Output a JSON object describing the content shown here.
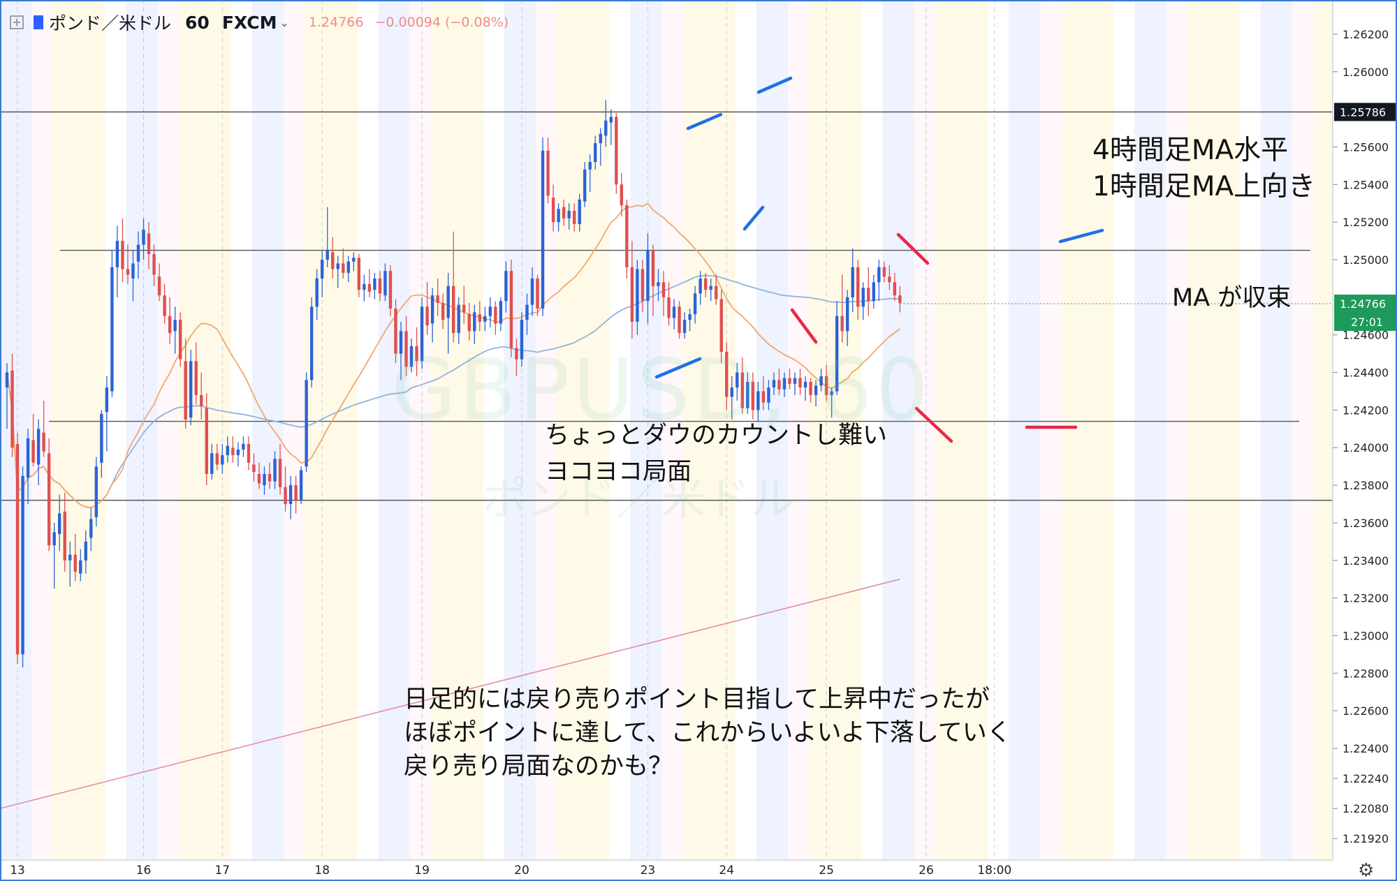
{
  "header": {
    "symbol": "ポンド／米ドル",
    "interval": "60",
    "source": "FXCM",
    "last_price": "1.24766",
    "change": "−0.00094 (−0.08%)"
  },
  "watermark": {
    "ticker": "GBPUSD, 60",
    "name": "ポンド／米ドル"
  },
  "chart_data": {
    "type": "candlestick",
    "ylim": [
      1.2188,
      1.263
    ],
    "price_ticks": [
      "1.26200",
      "1.26000",
      "1.25600",
      "1.25400",
      "1.25200",
      "1.25000",
      "1.24600",
      "1.24400",
      "1.24200",
      "1.24000",
      "1.23800",
      "1.23600",
      "1.23400",
      "1.23200",
      "1.23000",
      "1.22800",
      "1.22600",
      "1.22400",
      "1.22240",
      "1.22080",
      "1.21920"
    ],
    "date_ticks": [
      {
        "label": "13",
        "bar": 2
      },
      {
        "label": "16",
        "bar": 26
      },
      {
        "label": "17",
        "bar": 41
      },
      {
        "label": "18",
        "bar": 60
      },
      {
        "label": "19",
        "bar": 79
      },
      {
        "label": "20",
        "bar": 98
      },
      {
        "label": "23",
        "bar": 122
      },
      {
        "label": "24",
        "bar": 137
      },
      {
        "label": "25",
        "bar": 156
      },
      {
        "label": "26",
        "bar": 175
      },
      {
        "label": "18:00",
        "bar": 188
      }
    ],
    "horizontal_lines": [
      {
        "price": 1.25786,
        "badge": "1.25786"
      },
      {
        "price": 1.2505
      },
      {
        "price": 1.2414
      },
      {
        "price": 1.2372
      }
    ],
    "last_badge": {
      "price": 1.24766,
      "value": "1.24766",
      "countdown": "27:01"
    },
    "candles": [
      [
        1.2432,
        1.2445,
        1.241,
        1.244
      ],
      [
        1.2441,
        1.245,
        1.2395,
        1.24
      ],
      [
        1.2402,
        1.2408,
        1.2285,
        1.229
      ],
      [
        1.229,
        1.239,
        1.2283,
        1.2385
      ],
      [
        1.2384,
        1.241,
        1.237,
        1.2405
      ],
      [
        1.2404,
        1.2418,
        1.239,
        1.2392
      ],
      [
        1.2391,
        1.2415,
        1.238,
        1.241
      ],
      [
        1.2408,
        1.2425,
        1.2395,
        1.2398
      ],
      [
        1.2397,
        1.2405,
        1.2345,
        1.2348
      ],
      [
        1.2348,
        1.236,
        1.2325,
        1.2355
      ],
      [
        1.2354,
        1.2375,
        1.2345,
        1.2365
      ],
      [
        1.2366,
        1.2376,
        1.2334,
        1.234
      ],
      [
        1.234,
        1.235,
        1.2326,
        1.2343
      ],
      [
        1.2343,
        1.2354,
        1.2329,
        1.2334
      ],
      [
        1.2333,
        1.2346,
        1.2329,
        1.234
      ],
      [
        1.234,
        1.2356,
        1.2333,
        1.235
      ],
      [
        1.2352,
        1.2368,
        1.2345,
        1.2362
      ],
      [
        1.2363,
        1.2395,
        1.2358,
        1.239
      ],
      [
        1.2392,
        1.242,
        1.2384,
        1.2418
      ],
      [
        1.2419,
        1.2438,
        1.2398,
        1.2432
      ],
      [
        1.243,
        1.2505,
        1.2427,
        1.2496
      ],
      [
        1.2496,
        1.2518,
        1.248,
        1.251
      ],
      [
        1.251,
        1.2522,
        1.2488,
        1.2495
      ],
      [
        1.2495,
        1.2508,
        1.2487,
        1.2492
      ],
      [
        1.249,
        1.2505,
        1.2478,
        1.2498
      ],
      [
        1.2499,
        1.2515,
        1.249,
        1.2508
      ],
      [
        1.2508,
        1.2522,
        1.25,
        1.2516
      ],
      [
        1.2514,
        1.252,
        1.2495,
        1.2503
      ],
      [
        1.2503,
        1.2508,
        1.2486,
        1.2492
      ],
      [
        1.2491,
        1.2498,
        1.2478,
        1.2481
      ],
      [
        1.2481,
        1.2487,
        1.2466,
        1.247
      ],
      [
        1.247,
        1.248,
        1.2455,
        1.2461
      ],
      [
        1.2462,
        1.2475,
        1.245,
        1.2468
      ],
      [
        1.2468,
        1.2472,
        1.2443,
        1.2447
      ],
      [
        1.2446,
        1.2458,
        1.241,
        1.2415
      ],
      [
        1.2416,
        1.2452,
        1.2412,
        1.2446
      ],
      [
        1.2446,
        1.2456,
        1.2423,
        1.2428
      ],
      [
        1.2428,
        1.244,
        1.2415,
        1.2422
      ],
      [
        1.2421,
        1.2429,
        1.238,
        1.2386
      ],
      [
        1.2386,
        1.2402,
        1.2383,
        1.2397
      ],
      [
        1.2397,
        1.2402,
        1.2388,
        1.2391
      ],
      [
        1.2391,
        1.2402,
        1.2386,
        1.2396
      ],
      [
        1.2396,
        1.2406,
        1.2392,
        1.2401
      ],
      [
        1.24,
        1.2406,
        1.2392,
        1.2396
      ],
      [
        1.2396,
        1.2403,
        1.239,
        1.2399
      ],
      [
        1.2399,
        1.2406,
        1.2395,
        1.2402
      ],
      [
        1.2402,
        1.2406,
        1.2388,
        1.2392
      ],
      [
        1.2391,
        1.2397,
        1.2382,
        1.2387
      ],
      [
        1.2386,
        1.2392,
        1.2378,
        1.2381
      ],
      [
        1.238,
        1.239,
        1.2375,
        1.2386
      ],
      [
        1.2386,
        1.2392,
        1.2378,
        1.2382
      ],
      [
        1.2382,
        1.2398,
        1.2378,
        1.2394
      ],
      [
        1.2394,
        1.2402,
        1.2375,
        1.2379
      ],
      [
        1.2379,
        1.239,
        1.2366,
        1.237
      ],
      [
        1.237,
        1.2385,
        1.2362,
        1.238
      ],
      [
        1.238,
        1.2385,
        1.2365,
        1.2372
      ],
      [
        1.2372,
        1.239,
        1.237,
        1.2388
      ],
      [
        1.239,
        1.244,
        1.2387,
        1.2436
      ],
      [
        1.2436,
        1.248,
        1.2432,
        1.2475
      ],
      [
        1.2475,
        1.2495,
        1.2468,
        1.249
      ],
      [
        1.249,
        1.2505,
        1.248,
        1.25
      ],
      [
        1.25,
        1.2528,
        1.2496,
        1.2505
      ],
      [
        1.2504,
        1.2512,
        1.249,
        1.2495
      ],
      [
        1.2495,
        1.2502,
        1.2485,
        1.2498
      ],
      [
        1.2498,
        1.2506,
        1.249,
        1.2493
      ],
      [
        1.2493,
        1.2502,
        1.2488,
        1.2499
      ],
      [
        1.2499,
        1.2504,
        1.2494,
        1.2501
      ],
      [
        1.2501,
        1.2503,
        1.248,
        1.2484
      ],
      [
        1.2484,
        1.2492,
        1.2478,
        1.2487
      ],
      [
        1.2487,
        1.2495,
        1.248,
        1.2483
      ],
      [
        1.2484,
        1.2493,
        1.2479,
        1.249
      ],
      [
        1.249,
        1.2494,
        1.2478,
        1.2482
      ],
      [
        1.2481,
        1.2498,
        1.2478,
        1.2494
      ],
      [
        1.2494,
        1.2497,
        1.247,
        1.2474
      ],
      [
        1.2474,
        1.2479,
        1.2445,
        1.245
      ],
      [
        1.245,
        1.2467,
        1.2436,
        1.2462
      ],
      [
        1.2462,
        1.247,
        1.2438,
        1.2443
      ],
      [
        1.2443,
        1.2458,
        1.244,
        1.2454
      ],
      [
        1.2454,
        1.2464,
        1.2438,
        1.2446
      ],
      [
        1.2446,
        1.248,
        1.2442,
        1.2475
      ],
      [
        1.2475,
        1.2488,
        1.246,
        1.2465
      ],
      [
        1.2466,
        1.2485,
        1.2456,
        1.2481
      ],
      [
        1.2481,
        1.249,
        1.247,
        1.2477
      ],
      [
        1.2477,
        1.2482,
        1.2463,
        1.2468
      ],
      [
        1.2469,
        1.2493,
        1.245,
        1.2486
      ],
      [
        1.2486,
        1.2515,
        1.2456,
        1.2461
      ],
      [
        1.2461,
        1.248,
        1.2455,
        1.2476
      ],
      [
        1.2476,
        1.2486,
        1.2466,
        1.2472
      ],
      [
        1.2471,
        1.2477,
        1.2457,
        1.2462
      ],
      [
        1.2462,
        1.2476,
        1.2455,
        1.2472
      ],
      [
        1.2471,
        1.2478,
        1.2462,
        1.2467
      ],
      [
        1.2467,
        1.2475,
        1.2462,
        1.247
      ],
      [
        1.247,
        1.248,
        1.2464,
        1.2475
      ],
      [
        1.2475,
        1.2478,
        1.246,
        1.2466
      ],
      [
        1.2466,
        1.248,
        1.2462,
        1.2478
      ],
      [
        1.2478,
        1.2499,
        1.2472,
        1.2494
      ],
      [
        1.2494,
        1.25,
        1.2448,
        1.2453
      ],
      [
        1.2453,
        1.2458,
        1.2438,
        1.2447
      ],
      [
        1.2447,
        1.2472,
        1.2443,
        1.2468
      ],
      [
        1.2468,
        1.2482,
        1.246,
        1.2476
      ],
      [
        1.2476,
        1.2496,
        1.247,
        1.249
      ],
      [
        1.249,
        1.2492,
        1.247,
        1.2474
      ],
      [
        1.2474,
        1.2565,
        1.247,
        1.2558
      ],
      [
        1.2558,
        1.2565,
        1.253,
        1.2534
      ],
      [
        1.2533,
        1.254,
        1.2515,
        1.252
      ],
      [
        1.252,
        1.253,
        1.2515,
        1.2527
      ],
      [
        1.2528,
        1.2532,
        1.2518,
        1.2522
      ],
      [
        1.2522,
        1.253,
        1.2516,
        1.2526
      ],
      [
        1.2526,
        1.253,
        1.2515,
        1.2519
      ],
      [
        1.2519,
        1.2535,
        1.2515,
        1.2532
      ],
      [
        1.2531,
        1.2552,
        1.2528,
        1.2548
      ],
      [
        1.2548,
        1.2556,
        1.2536,
        1.2552
      ],
      [
        1.2552,
        1.2566,
        1.2548,
        1.2562
      ],
      [
        1.2562,
        1.257,
        1.255,
        1.2567
      ],
      [
        1.2566,
        1.2585,
        1.256,
        1.2574
      ],
      [
        1.2573,
        1.258,
        1.2561,
        1.2576
      ],
      [
        1.2576,
        1.2578,
        1.2535,
        1.254
      ],
      [
        1.254,
        1.2546,
        1.2523,
        1.2529
      ],
      [
        1.2529,
        1.2532,
        1.249,
        1.2496
      ],
      [
        1.2496,
        1.251,
        1.2458,
        1.2467
      ],
      [
        1.2467,
        1.25,
        1.246,
        1.2495
      ],
      [
        1.2495,
        1.25,
        1.2472,
        1.2478
      ],
      [
        1.2478,
        1.2514,
        1.2466,
        1.2505
      ],
      [
        1.2505,
        1.2508,
        1.247,
        1.2486
      ],
      [
        1.2486,
        1.2495,
        1.2478,
        1.2488
      ],
      [
        1.2488,
        1.2494,
        1.247,
        1.248
      ],
      [
        1.248,
        1.2488,
        1.2465,
        1.2469
      ],
      [
        1.2469,
        1.2479,
        1.2463,
        1.2475
      ],
      [
        1.2475,
        1.2478,
        1.2458,
        1.2461
      ],
      [
        1.2461,
        1.2472,
        1.2458,
        1.2468
      ],
      [
        1.2468,
        1.2474,
        1.2462,
        1.2471
      ],
      [
        1.2471,
        1.2486,
        1.2466,
        1.2482
      ],
      [
        1.2482,
        1.2494,
        1.2476,
        1.249
      ],
      [
        1.249,
        1.2493,
        1.248,
        1.2484
      ],
      [
        1.2484,
        1.249,
        1.2478,
        1.2486
      ],
      [
        1.2486,
        1.2492,
        1.2476,
        1.2479
      ],
      [
        1.2479,
        1.2484,
        1.2445,
        1.2451
      ],
      [
        1.2451,
        1.2456,
        1.242,
        1.2427
      ],
      [
        1.2427,
        1.2438,
        1.2415,
        1.2432
      ],
      [
        1.2432,
        1.2445,
        1.2425,
        1.244
      ],
      [
        1.244,
        1.2448,
        1.2418,
        1.2421
      ],
      [
        1.2421,
        1.244,
        1.2418,
        1.2435
      ],
      [
        1.2435,
        1.244,
        1.2415,
        1.242
      ],
      [
        1.242,
        1.2435,
        1.2414,
        1.243
      ],
      [
        1.243,
        1.2438,
        1.242,
        1.2424
      ],
      [
        1.2424,
        1.2436,
        1.242,
        1.2432
      ],
      [
        1.2432,
        1.244,
        1.2428,
        1.2436
      ],
      [
        1.2436,
        1.2442,
        1.2428,
        1.2431
      ],
      [
        1.2431,
        1.244,
        1.2427,
        1.2437
      ],
      [
        1.2437,
        1.2442,
        1.2431,
        1.2434
      ],
      [
        1.2434,
        1.244,
        1.2428,
        1.2437
      ],
      [
        1.2437,
        1.2442,
        1.2428,
        1.2432
      ],
      [
        1.2432,
        1.2438,
        1.2425,
        1.2435
      ],
      [
        1.2435,
        1.2437,
        1.2424,
        1.2428
      ],
      [
        1.2428,
        1.2436,
        1.2422,
        1.2433
      ],
      [
        1.2433,
        1.2442,
        1.243,
        1.2438
      ],
      [
        1.2438,
        1.2444,
        1.2425,
        1.2428
      ],
      [
        1.2428,
        1.2432,
        1.2416,
        1.243
      ],
      [
        1.243,
        1.2478,
        1.2428,
        1.247
      ],
      [
        1.247,
        1.2492,
        1.2456,
        1.2462
      ],
      [
        1.2462,
        1.2484,
        1.2454,
        1.248
      ],
      [
        1.248,
        1.2506,
        1.2472,
        1.2496
      ],
      [
        1.2496,
        1.25,
        1.2468,
        1.2475
      ],
      [
        1.2475,
        1.2488,
        1.2468,
        1.2485
      ],
      [
        1.2485,
        1.2496,
        1.247,
        1.2478
      ],
      [
        1.2478,
        1.2492,
        1.2474,
        1.2488
      ],
      [
        1.2488,
        1.25,
        1.2478,
        1.2496
      ],
      [
        1.2496,
        1.2499,
        1.2488,
        1.2491
      ],
      [
        1.2491,
        1.2497,
        1.2484,
        1.2488
      ],
      [
        1.2488,
        1.2493,
        1.2478,
        1.2481
      ],
      [
        1.2481,
        1.2486,
        1.2472,
        1.2477
      ]
    ]
  },
  "annotations": {
    "tf_note": [
      "4時間足MA水平",
      "1時間足MA上向き"
    ],
    "ma_note": "MA が収束",
    "dow_note": [
      "ちょっとダウのカウントし難い",
      "ヨコヨコ局面"
    ],
    "daily_note": [
      "日足的には戻り売りポイント目指して上昇中だったが",
      "ほぼポイントに達して、これからいよいよ下落していく",
      "戻り売り局面なのかも？"
    ]
  },
  "colors": {
    "up": "#2b63d6",
    "down": "#e04f4f",
    "ma_short": "#f2a76a",
    "ma_mid": "#8fb4dc",
    "ma_long": "#e68ab0",
    "mark_blue": "#1f6fe8",
    "mark_red": "#e8284a",
    "last_badge": "#1e9a5a"
  }
}
